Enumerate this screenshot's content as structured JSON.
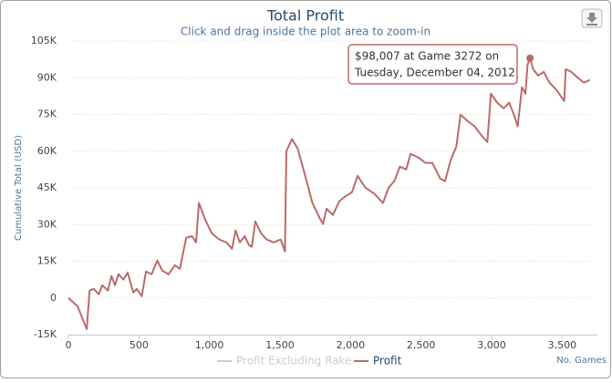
{
  "chart_data": {
    "type": "line",
    "title": "Total Profit",
    "subtitle": "Click and drag inside the plot area to zoom-in",
    "y_label": "Cumulative Total (USD)",
    "x_label": "No. Games",
    "xlim": [
      0,
      3750
    ],
    "xticks": [
      0,
      500,
      {
        "value": 1000,
        "label": "1,000"
      },
      {
        "value": 1500,
        "label": "1,500"
      },
      {
        "value": 2000,
        "label": "2,000"
      },
      {
        "value": 2500,
        "label": "2,500"
      },
      {
        "value": 3000,
        "label": "3,000"
      },
      {
        "value": 3500,
        "label": "3,500"
      }
    ],
    "ylim": [
      -15000,
      105000
    ],
    "yticks": [
      {
        "value": -15000,
        "label": "-15K"
      },
      0,
      {
        "value": 15000,
        "label": "15K"
      },
      {
        "value": 30000,
        "label": "30K"
      },
      {
        "value": 45000,
        "label": "45K"
      },
      {
        "value": 60000,
        "label": "60K"
      },
      {
        "value": 75000,
        "label": "75K"
      },
      {
        "value": 90000,
        "label": "90K"
      },
      {
        "value": 105000,
        "label": "105K"
      }
    ],
    "grid": true,
    "x": [
      0,
      65,
      130,
      150,
      180,
      215,
      240,
      280,
      305,
      330,
      355,
      390,
      420,
      460,
      485,
      520,
      550,
      590,
      630,
      665,
      710,
      755,
      790,
      835,
      875,
      905,
      925,
      970,
      1015,
      1070,
      1120,
      1160,
      1185,
      1215,
      1250,
      1280,
      1300,
      1325,
      1365,
      1405,
      1455,
      1505,
      1535,
      1545,
      1585,
      1625,
      1675,
      1730,
      1780,
      1805,
      1830,
      1875,
      1920,
      1960,
      2010,
      2050,
      2105,
      2170,
      2230,
      2270,
      2310,
      2350,
      2395,
      2425,
      2480,
      2530,
      2580,
      2635,
      2670,
      2710,
      2750,
      2780,
      2830,
      2880,
      2930,
      2970,
      2995,
      3040,
      3085,
      3125,
      3165,
      3185,
      3215,
      3240,
      3255,
      3272,
      3295,
      3330,
      3370,
      3410,
      3460,
      3515,
      3525,
      3565,
      3615,
      3655,
      3695
    ],
    "series": [
      {
        "name": "Profit Excluding Rake",
        "color": "#cccccc",
        "visible": false
      },
      {
        "name": "Profit",
        "color": "#b96b6b",
        "visible": true,
        "values": [
          0,
          -3400,
          -12700,
          3000,
          3700,
          1500,
          5200,
          3000,
          9000,
          5200,
          9700,
          7500,
          10400,
          2200,
          3700,
          700,
          10800,
          9700,
          15300,
          11200,
          9700,
          13400,
          11900,
          24600,
          25300,
          22700,
          38800,
          32000,
          26500,
          23900,
          22700,
          20100,
          27600,
          22700,
          25300,
          21600,
          20900,
          31300,
          26500,
          23900,
          22700,
          23900,
          19000,
          60000,
          64900,
          61100,
          50700,
          38800,
          32800,
          30200,
          36500,
          33900,
          39500,
          41400,
          43200,
          49900,
          45100,
          42500,
          38800,
          45100,
          47700,
          53700,
          52500,
          58900,
          57400,
          55200,
          55200,
          48800,
          47700,
          56300,
          61900,
          74900,
          72300,
          70100,
          66300,
          63700,
          83500,
          79800,
          77500,
          79800,
          73800,
          70100,
          86100,
          83500,
          95400,
          98007,
          93500,
          90900,
          92400,
          88000,
          85000,
          80500,
          93500,
          92400,
          89800,
          88000,
          89100
        ]
      }
    ],
    "annotation": {
      "x": 3272,
      "y": 98007,
      "lines": [
        "$98,007 at Game 3272 on",
        "Tuesday, December 04, 2012"
      ]
    }
  }
}
